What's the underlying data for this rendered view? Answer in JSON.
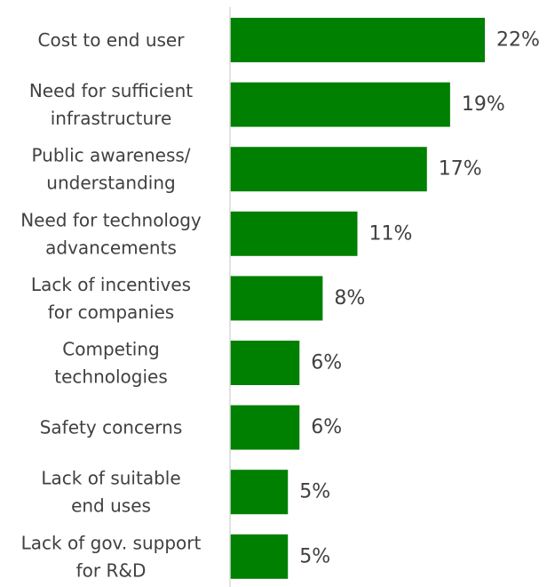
{
  "chart_data": {
    "type": "bar",
    "orientation": "horizontal",
    "categories": [
      "Cost to end user",
      "Need for sufficient\ninfrastructure",
      "Public awareness/\nunderstanding",
      "Need for technology\nadvancements",
      "Lack of incentives\nfor companies",
      "Competing\ntechnologies",
      "Safety concerns",
      "Lack of suitable\nend uses",
      "Lack of gov. support\nfor R&D"
    ],
    "values": [
      22,
      19,
      17,
      11,
      8,
      6,
      6,
      5,
      5
    ],
    "data_labels": [
      "22%",
      "19%",
      "17%",
      "11%",
      "8%",
      "6%",
      "6%",
      "5%",
      "5%"
    ],
    "xlim": [
      0,
      28
    ],
    "grid": false,
    "legend": "none",
    "bar_color": "#008000",
    "axis_color": "#d9d9d9"
  }
}
